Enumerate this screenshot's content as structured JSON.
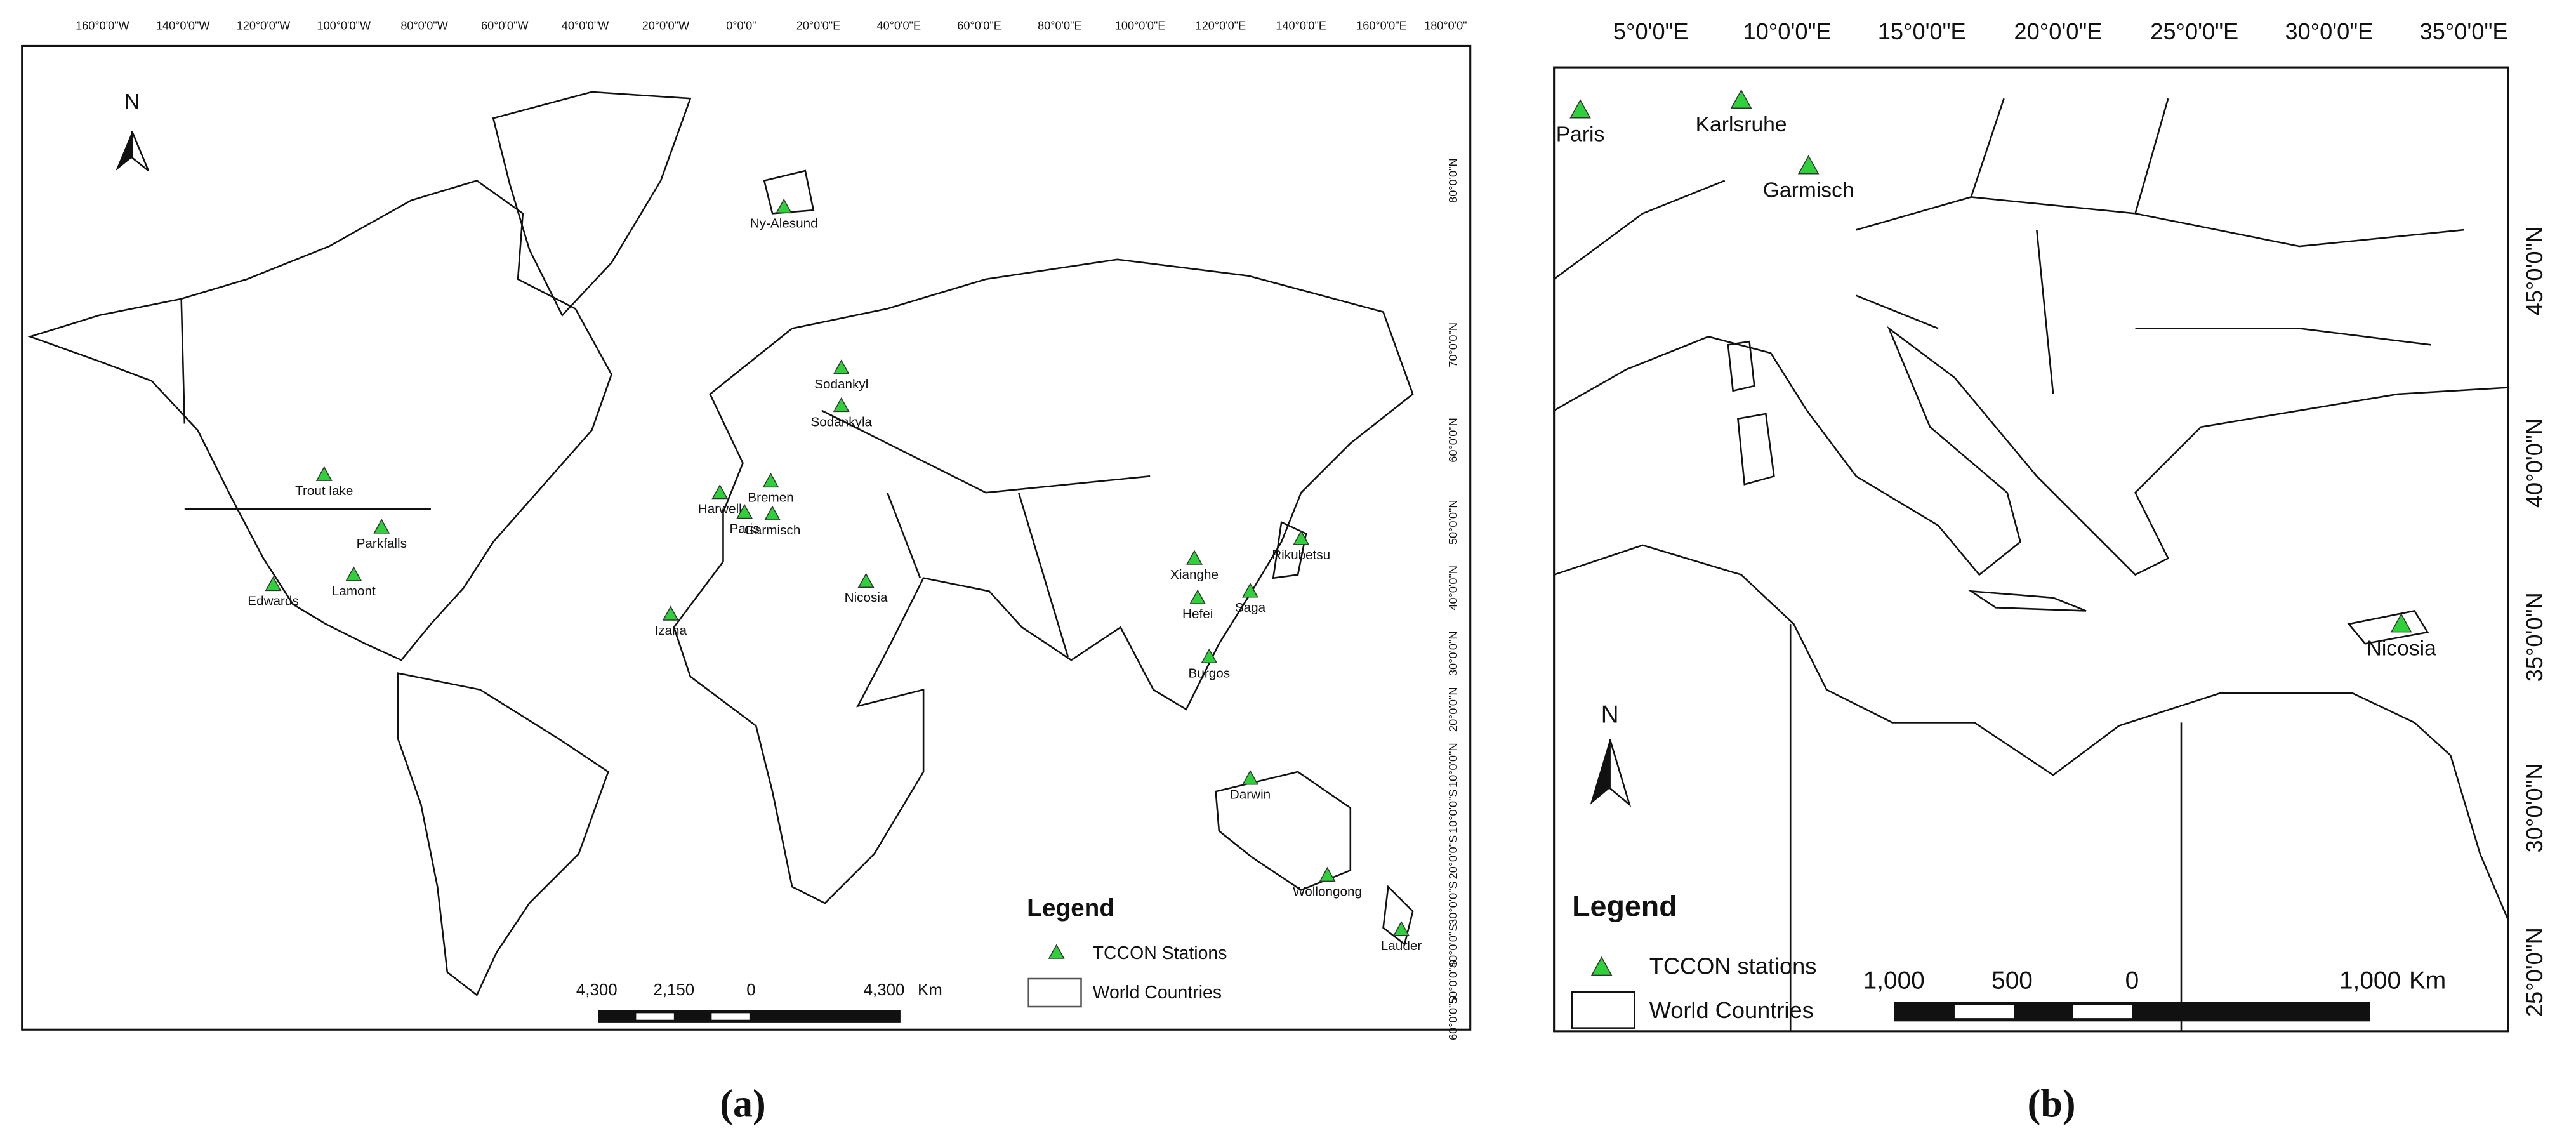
{
  "panels": [
    {
      "label": "(a)",
      "north": "N",
      "longitude_labels": [
        "160°0'0\"W",
        "140°0'0\"W",
        "120°0'0\"W",
        "100°0'0\"W",
        "80°0'0\"W",
        "60°0'0\"W",
        "40°0'0\"W",
        "20°0'0\"W",
        "0°0'0\"",
        "20°0'0\"E",
        "40°0'0\"E",
        "60°0'0\"E",
        "80°0'0\"E",
        "100°0'0\"E",
        "120°0'0\"E",
        "140°0'0\"E",
        "160°0'0\"E",
        "180°0'0\""
      ],
      "latitude_labels": [
        "80°0'0\"N",
        "70°0'0\"N",
        "60°0'0\"N",
        "50°0'0\"N",
        "40°0'0\"N",
        "30°0'0\"N",
        "20°0'0\"N",
        "10°0'0\"N",
        "10°0'0\"S",
        "20°0'0\"S",
        "30°0'0\"S",
        "40°0'0\"S",
        "50°0'0\"S",
        "60°0'0\"S"
      ],
      "stations": [
        "Ny-Alesund",
        "Sodankyl",
        "Sodankyla",
        "Trout lake",
        "Parkfalls",
        "Lamont",
        "Edwards",
        "Izana",
        "Bremen",
        "Harwell",
        "Paris",
        "Garmisch",
        "Nicosia",
        "Xianghe",
        "Hefei",
        "Saga",
        "Rikubetsu",
        "Burgos",
        "Darwin",
        "Wollongong",
        "Lauder"
      ],
      "legend": {
        "title": "Legend",
        "items": [
          "TCCON Stations",
          "World Countries"
        ]
      },
      "scale_bar": [
        "4,300",
        "2,150",
        "0",
        "4,300"
      ],
      "scale_unit": "Km"
    },
    {
      "label": "(b)",
      "north": "N",
      "longitude_labels": [
        "5°0'0\"E",
        "10°0'0\"E",
        "15°0'0\"E",
        "20°0'0\"E",
        "25°0'0\"E",
        "30°0'0\"E",
        "35°0'0\"E"
      ],
      "latitude_labels": [
        "45°0'0\"N",
        "40°0'0\"N",
        "35°0'0\"N",
        "30°0'0\"N",
        "25°0'0\"N"
      ],
      "stations": [
        "Paris",
        "Karlsruhe",
        "Garmisch",
        "Nicosia"
      ],
      "legend": {
        "title": "Legend",
        "items": [
          "TCCON stations",
          "World Countries"
        ]
      },
      "scale_bar": [
        "1,000",
        "500",
        "0",
        "1,000"
      ],
      "scale_unit": "Km"
    }
  ]
}
